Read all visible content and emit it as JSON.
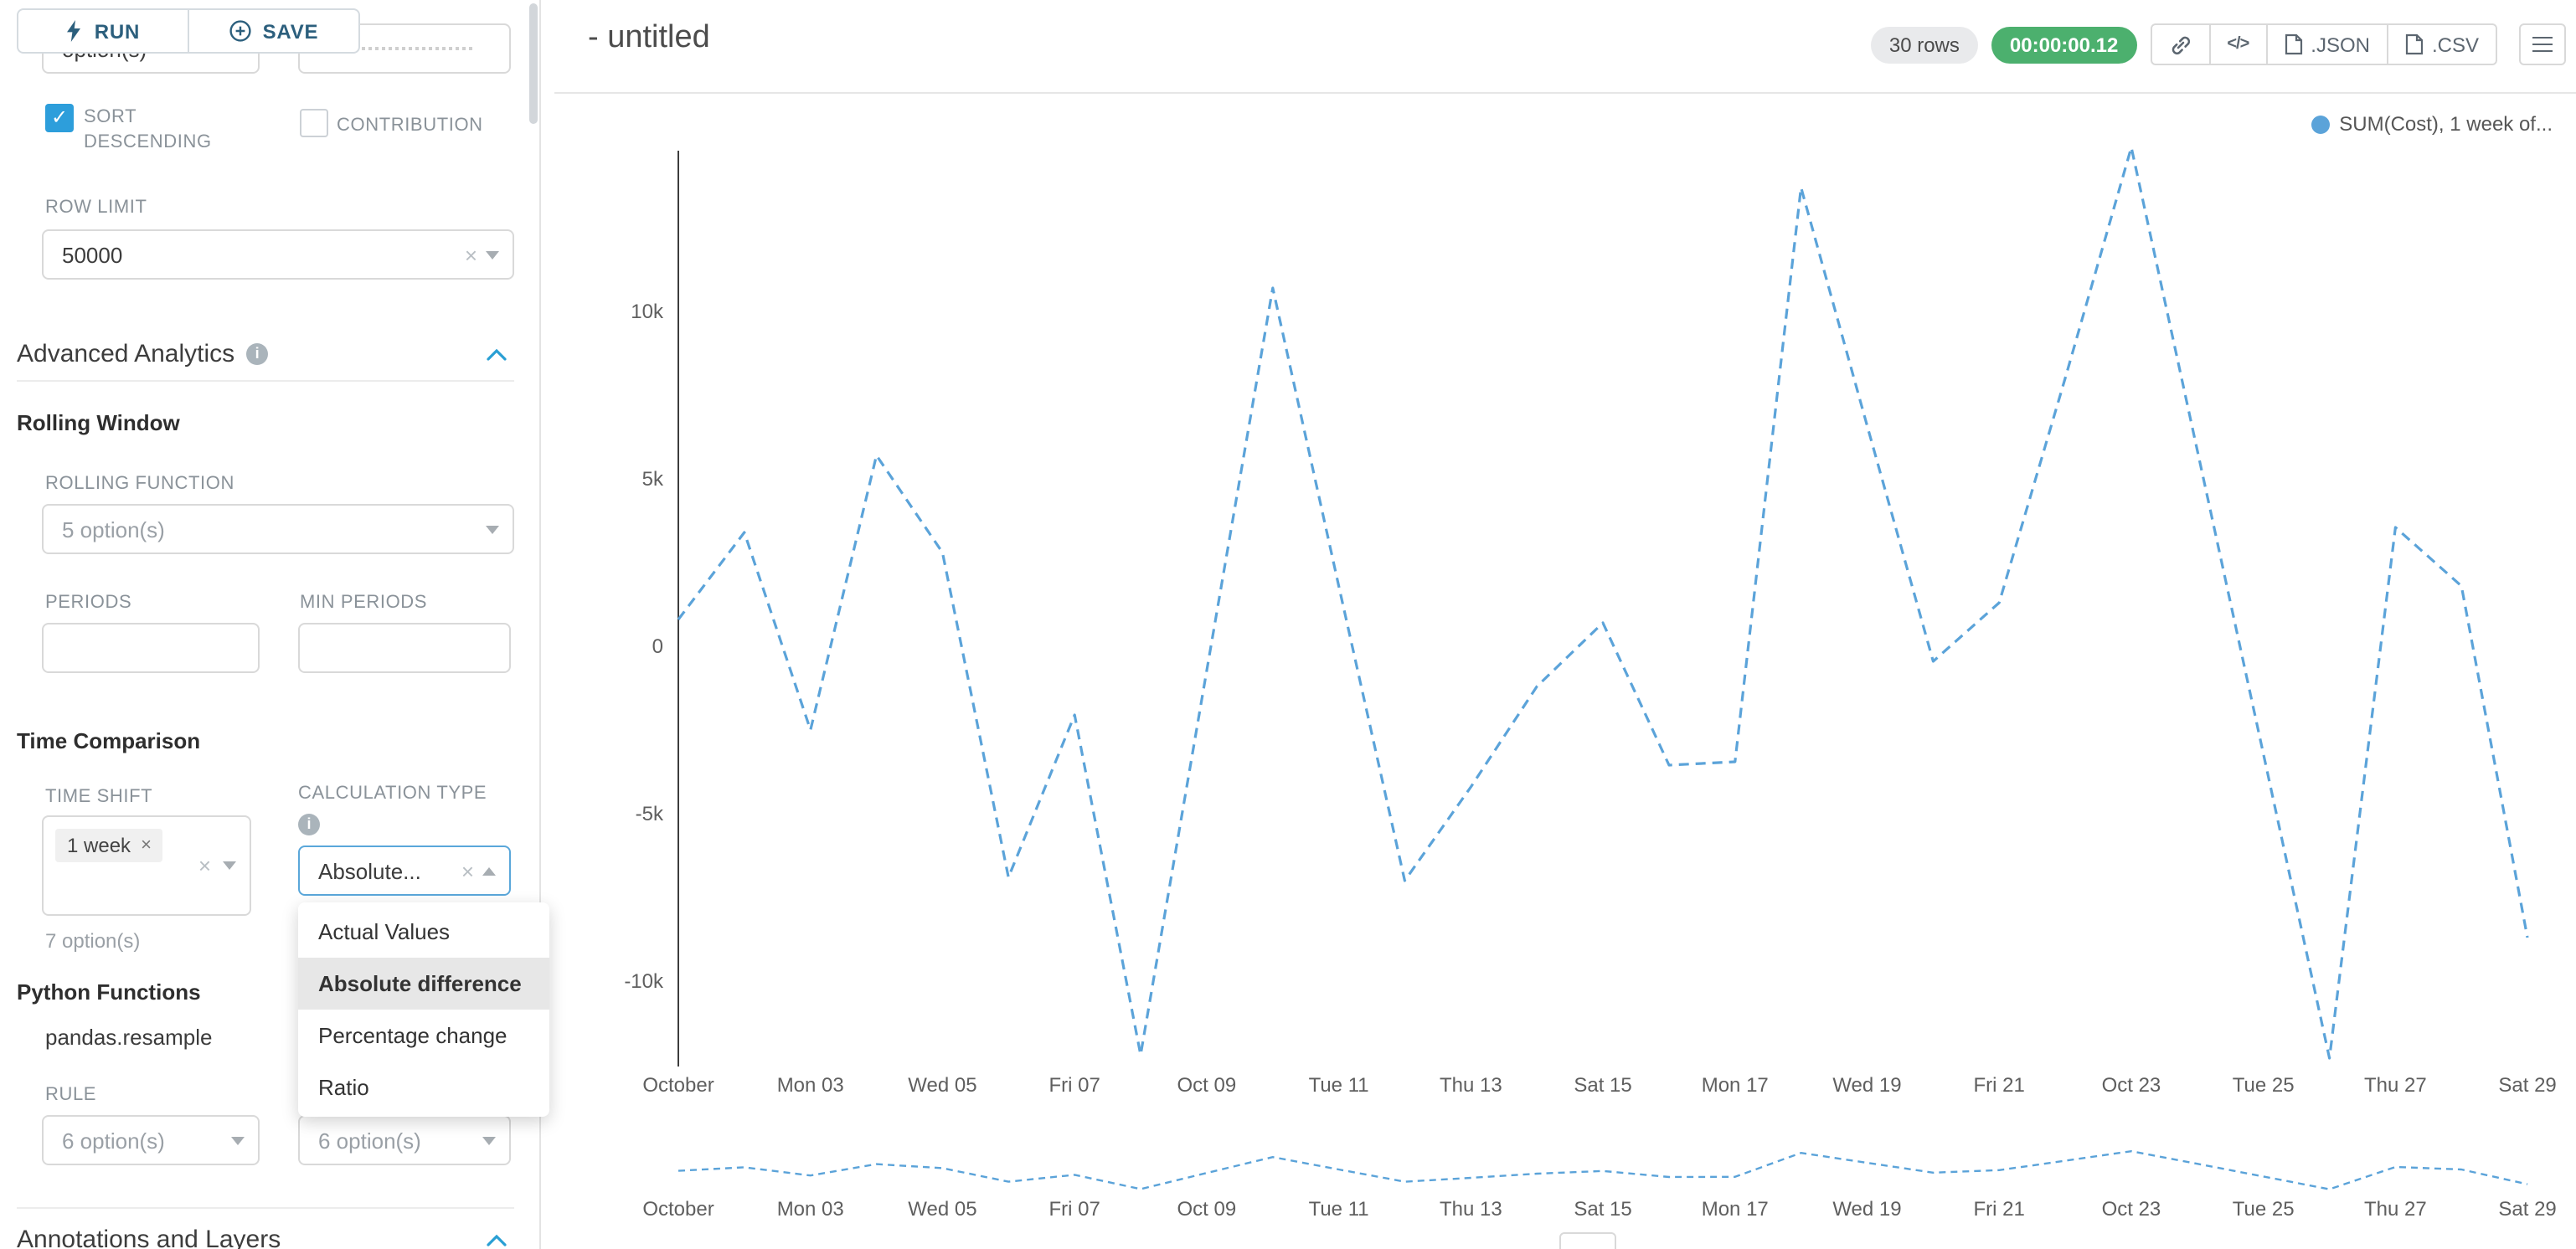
{
  "colors": {
    "accent_blue": "#299fd4",
    "checkbox_blue": "#2d9edb",
    "run_save_color": "#2c5f7d",
    "timer_green": "#4cb06e",
    "line_blue": "#5ba3d9",
    "badge_gray_bg": "#e9eaec",
    "border_gray": "#d9d9d9",
    "label_gray": "#8a9299",
    "placeholder_gray": "#9aa0a6"
  },
  "toolbar": {
    "run_label": "RUN",
    "save_label": "SAVE"
  },
  "panel": {
    "top_cut": {
      "left_value": "option(s)"
    },
    "sort_descending_label": "SORT DESCENDING",
    "contribution_label": "CONTRIBUTION",
    "row_limit": {
      "label": "ROW LIMIT",
      "value": "50000"
    },
    "advanced_analytics_title": "Advanced Analytics",
    "rolling_window": {
      "title": "Rolling Window",
      "rolling_function_label": "ROLLING FUNCTION",
      "rolling_function_placeholder": "5 option(s)",
      "periods_label": "PERIODS",
      "min_periods_label": "MIN PERIODS"
    },
    "time_comparison": {
      "title": "Time Comparison",
      "time_shift_label": "TIME SHIFT",
      "time_shift_tag": "1 week",
      "time_shift_helper": "7 option(s)",
      "calculation_type_label": "CALCULATION TYPE",
      "calculation_type_value": "Absolute...",
      "options": [
        "Actual Values",
        "Absolute difference",
        "Percentage change",
        "Ratio"
      ],
      "selected_option": "Absolute difference"
    },
    "python_functions": {
      "title": "Python Functions",
      "function_name": "pandas.resample",
      "rule_label": "RULE",
      "rule_placeholder": "6 option(s)",
      "freq_placeholder": "6 option(s)"
    },
    "annotations_title": "Annotations and Layers"
  },
  "header": {
    "title": "- untitled",
    "rows_badge": "30 rows",
    "timer": "00:00:00.12",
    "json_label": ".JSON",
    "csv_label": ".CSV"
  },
  "chart_data": {
    "type": "line",
    "title": "",
    "legend": [
      "SUM(Cost), 1 week of..."
    ],
    "legend_position": "top-right",
    "grid": false,
    "line_style": "dashed",
    "line_color": "#5ba3d9",
    "x": [
      "Oct 01",
      "Oct 02",
      "Oct 03",
      "Oct 04",
      "Oct 05",
      "Oct 06",
      "Oct 07",
      "Oct 08",
      "Oct 09",
      "Oct 10",
      "Oct 11",
      "Oct 12",
      "Oct 13",
      "Oct 14",
      "Oct 15",
      "Oct 16",
      "Oct 17",
      "Oct 18",
      "Oct 19",
      "Oct 20",
      "Oct 21",
      "Oct 22",
      "Oct 23",
      "Oct 24",
      "Oct 25",
      "Oct 26",
      "Oct 27",
      "Oct 28",
      "Oct 29"
    ],
    "x_tick_labels": [
      "October",
      "Mon 03",
      "Wed 05",
      "Fri 07",
      "Oct 09",
      "Tue 11",
      "Thu 13",
      "Sat 15",
      "Mon 17",
      "Wed 19",
      "Fri 21",
      "Oct 23",
      "Tue 25",
      "Thu 27",
      "Sat 29"
    ],
    "y_ticks": [
      10000,
      5000,
      0,
      -5000,
      -10000
    ],
    "y_tick_labels": [
      "10k",
      "5k",
      "0",
      "-5k",
      "-10k"
    ],
    "ylim": [
      -13000,
      15500
    ],
    "series": [
      {
        "name": "SUM(Cost), 1 week of...",
        "values": [
          800,
          3400,
          -2500,
          5700,
          2800,
          -6900,
          -2050,
          -12200,
          -750,
          10700,
          1800,
          -7000,
          -4200,
          -1200,
          700,
          -3550,
          -3450,
          13700,
          6600,
          -450,
          1300,
          8000,
          14900,
          5850,
          -3200,
          -12300,
          3550,
          1800,
          -8700
        ]
      }
    ],
    "has_preview_strip": true
  }
}
